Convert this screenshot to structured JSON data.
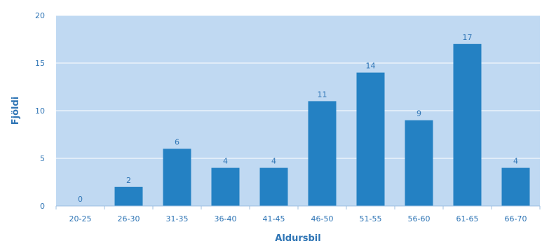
{
  "chart_data": {
    "type": "bar",
    "title": "",
    "xlabel": "Aldursbil",
    "ylabel": "Fjöldi",
    "categories": [
      "20-25",
      "26-30",
      "31-35",
      "36-40",
      "41-45",
      "46-50",
      "51-55",
      "56-60",
      "61-65",
      "66-70"
    ],
    "values": [
      0,
      2,
      6,
      4,
      4,
      11,
      14,
      9,
      17,
      4
    ],
    "ylim": [
      0,
      20
    ],
    "yticks": [
      0,
      5,
      10,
      15,
      20
    ],
    "grid": true,
    "data_labels": true,
    "legend": "none"
  },
  "colors": {
    "bar": "#2481C3",
    "plot_background": "#C0D9F2",
    "gridline": "#FFFFFF",
    "text": "#2F75B5",
    "axis": "#9DBFE0"
  }
}
